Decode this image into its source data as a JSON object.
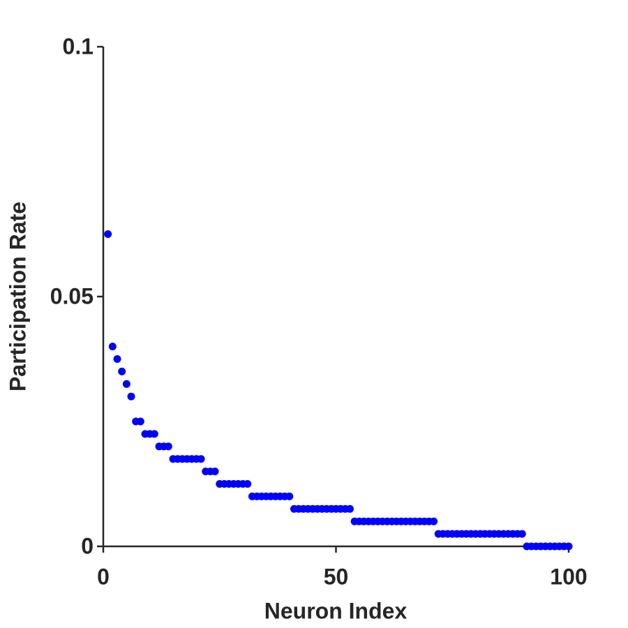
{
  "chart_data": {
    "type": "scatter",
    "xlabel": "Neuron Index",
    "ylabel": "Participation Rate",
    "x": [
      1,
      2,
      3,
      4,
      5,
      6,
      7,
      8,
      9,
      10,
      11,
      12,
      13,
      14,
      15,
      16,
      17,
      18,
      19,
      20,
      21,
      22,
      23,
      24,
      25,
      26,
      27,
      28,
      29,
      30,
      31,
      32,
      33,
      34,
      35,
      36,
      37,
      38,
      39,
      40,
      41,
      42,
      43,
      44,
      45,
      46,
      47,
      48,
      49,
      50,
      51,
      52,
      53,
      54,
      55,
      56,
      57,
      58,
      59,
      60,
      61,
      62,
      63,
      64,
      65,
      66,
      67,
      68,
      69,
      70,
      71,
      72,
      73,
      74,
      75,
      76,
      77,
      78,
      79,
      80,
      81,
      82,
      83,
      84,
      85,
      86,
      87,
      88,
      89,
      90,
      91,
      92,
      93,
      94,
      95,
      96,
      97,
      98,
      99,
      100
    ],
    "values": [
      0.0625,
      0.04,
      0.0375,
      0.035,
      0.0325,
      0.03,
      0.025,
      0.025,
      0.0225,
      0.0225,
      0.0225,
      0.02,
      0.02,
      0.02,
      0.0175,
      0.0175,
      0.0175,
      0.0175,
      0.0175,
      0.0175,
      0.0175,
      0.015,
      0.015,
      0.015,
      0.0125,
      0.0125,
      0.0125,
      0.0125,
      0.0125,
      0.0125,
      0.0125,
      0.01,
      0.01,
      0.01,
      0.01,
      0.01,
      0.01,
      0.01,
      0.01,
      0.01,
      0.0075,
      0.0075,
      0.0075,
      0.0075,
      0.0075,
      0.0075,
      0.0075,
      0.0075,
      0.0075,
      0.0075,
      0.0075,
      0.0075,
      0.0075,
      0.005,
      0.005,
      0.005,
      0.005,
      0.005,
      0.005,
      0.005,
      0.005,
      0.005,
      0.005,
      0.005,
      0.005,
      0.005,
      0.005,
      0.005,
      0.005,
      0.005,
      0.005,
      0.0025,
      0.0025,
      0.0025,
      0.0025,
      0.0025,
      0.0025,
      0.0025,
      0.0025,
      0.0025,
      0.0025,
      0.0025,
      0.0025,
      0.0025,
      0.0025,
      0.0025,
      0.0025,
      0.0025,
      0.0025,
      0.0025,
      0,
      0,
      0,
      0,
      0,
      0,
      0,
      0,
      0,
      0
    ],
    "color": "#0000ff",
    "xlim": [
      0,
      100
    ],
    "xticks": [
      0,
      50,
      100
    ],
    "ylim": [
      0,
      0.1
    ],
    "yticks": [
      0,
      0.05,
      0.1
    ]
  }
}
